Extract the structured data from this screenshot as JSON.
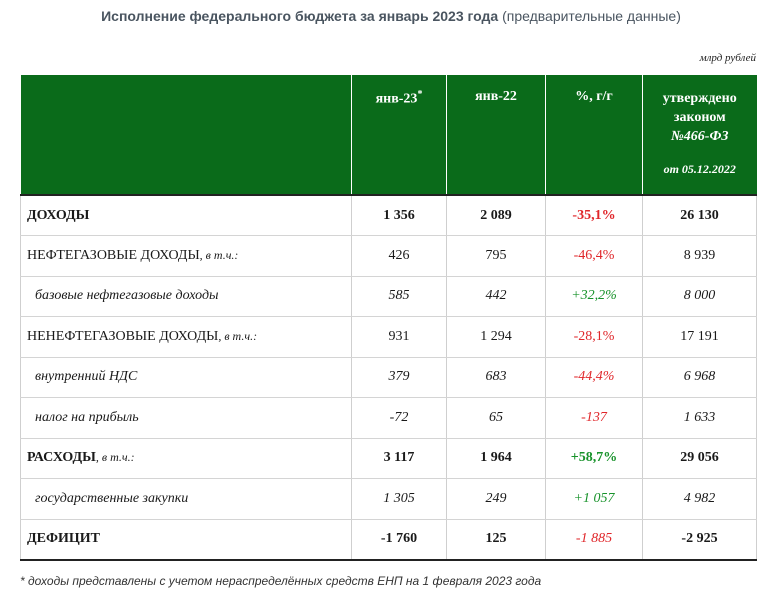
{
  "title": {
    "main": "Исполнение федерального бюджета за январь 2023 года",
    "note": "(предварительные данные)"
  },
  "unit": "млрд рублей",
  "header": {
    "col1": "янв-23",
    "col1_mark": "*",
    "col2": "янв-22",
    "col3": "%, г/г",
    "col4_line1": "утверждено",
    "col4_line2": "законом",
    "col4_line3": "№466-ФЗ",
    "col4_date": "от 05.12.2022"
  },
  "rows": [
    {
      "label": "ДОХОДЫ",
      "suffix": "",
      "jan23": "1 356",
      "jan22": "2 089",
      "yoy": "-35,1%",
      "law": "26 130"
    },
    {
      "label": "НЕФТЕГАЗОВЫЕ ДОХОДЫ",
      "suffix": ", в т.ч.:",
      "jan23": "426",
      "jan22": "795",
      "yoy": "-46,4%",
      "law": "8 939"
    },
    {
      "label": "базовые нефтегазовые доходы",
      "suffix": "",
      "jan23": "585",
      "jan22": "442",
      "yoy": "+32,2%",
      "law": "8 000"
    },
    {
      "label": "НЕНЕФТЕГАЗОВЫЕ ДОХОДЫ",
      "suffix": ", в т.ч.:",
      "jan23": "931",
      "jan22": "1 294",
      "yoy": "-28,1%",
      "law": "17 191"
    },
    {
      "label": "внутренний НДС",
      "suffix": "",
      "jan23": "379",
      "jan22": "683",
      "yoy": "-44,4%",
      "law": "6 968"
    },
    {
      "label": "налог на прибыль",
      "suffix": "",
      "jan23": "-72",
      "jan22": "65",
      "yoy": "-137",
      "law": "1 633"
    },
    {
      "label": "РАСХОДЫ",
      "suffix": ", в т.ч.:",
      "jan23": "3 117",
      "jan22": "1 964",
      "yoy": "+58,7%",
      "law": "29 056"
    },
    {
      "label": "государственные закупки",
      "suffix": "",
      "jan23": "1 305",
      "jan22": "249",
      "yoy": "+1 057",
      "law": "4 982"
    },
    {
      "label": "ДЕФИЦИТ",
      "suffix": "",
      "jan23": "-1 760",
      "jan22": "125",
      "yoy": "-1 885",
      "law": "-2 925"
    }
  ],
  "footnote": "* доходы представлены с учетом нераспределённых средств ЕНП на 1 февраля 2023 года",
  "colors": {
    "header_bg": "#0a6b1a",
    "negative": "#e0262a",
    "positive": "#17922a"
  }
}
